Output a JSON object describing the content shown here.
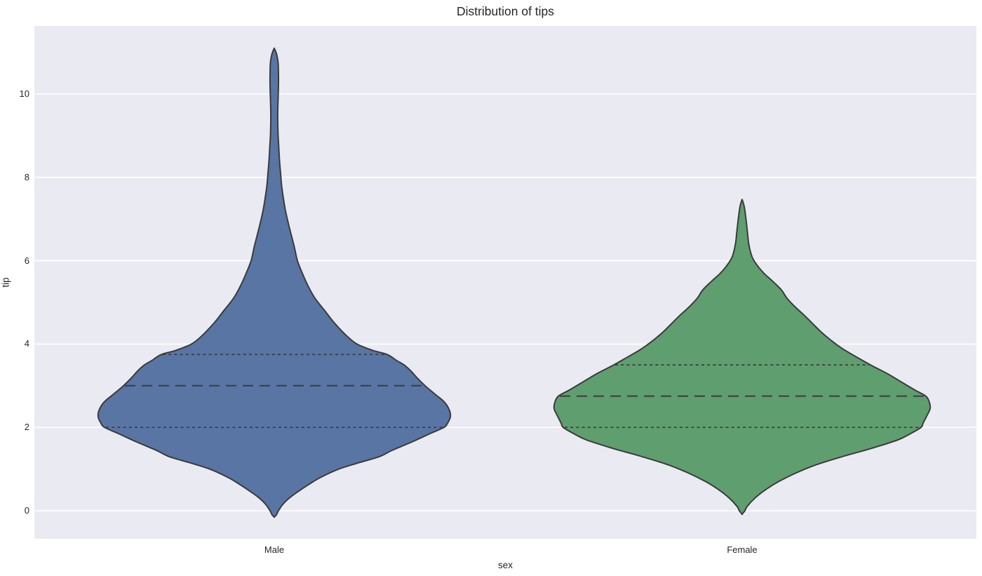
{
  "chart_data": {
    "type": "violin",
    "title": "Distribution of tips",
    "xlabel": "sex",
    "ylabel": "tip",
    "categories": [
      "Male",
      "Female"
    ],
    "y_ticks": [
      0,
      2,
      4,
      6,
      8,
      10
    ],
    "ylim": [
      -0.67,
      11.63
    ],
    "grid": "horizontal-white-on-gray",
    "legend": "none",
    "inner": "quartile-dashed-lines",
    "colors": {
      "axes_background": "#eaeaf2",
      "gridline": "#ffffff",
      "violin_edge": "#3b3b3b",
      "quartile_line": "#3c3c3c",
      "text": "#262626"
    },
    "series": [
      {
        "name": "Male",
        "fill": "#5875a4",
        "q1": 2.0,
        "median": 3.0,
        "q3": 3.75,
        "kde_extent": [
          -0.15,
          11.1
        ],
        "profile": [
          [
            11.1,
            0
          ],
          [
            10.95,
            3.5
          ],
          [
            10.75,
            5.5
          ],
          [
            10.5,
            6
          ],
          [
            10.2,
            6
          ],
          [
            9.9,
            5.5
          ],
          [
            9.6,
            5
          ],
          [
            9.3,
            5
          ],
          [
            9.0,
            5.5
          ],
          [
            8.7,
            6.5
          ],
          [
            8.4,
            7.5
          ],
          [
            8.1,
            9
          ],
          [
            7.8,
            10.5
          ],
          [
            7.5,
            13
          ],
          [
            7.2,
            16
          ],
          [
            6.9,
            20
          ],
          [
            6.6,
            24.5
          ],
          [
            6.3,
            29
          ],
          [
            6.0,
            33
          ],
          [
            5.7,
            40
          ],
          [
            5.4,
            48
          ],
          [
            5.1,
            58
          ],
          [
            4.8,
            72
          ],
          [
            4.5,
            86
          ],
          [
            4.2,
            103
          ],
          [
            4.0,
            118
          ],
          [
            3.85,
            140
          ],
          [
            3.75,
            161
          ],
          [
            3.6,
            175
          ],
          [
            3.5,
            185
          ],
          [
            3.35,
            195
          ],
          [
            3.2,
            203
          ],
          [
            3.0,
            215
          ],
          [
            2.8,
            229
          ],
          [
            2.6,
            243
          ],
          [
            2.4,
            250
          ],
          [
            2.25,
            251
          ],
          [
            2.1,
            247
          ],
          [
            2.0,
            242
          ],
          [
            1.85,
            222
          ],
          [
            1.65,
            196
          ],
          [
            1.45,
            168
          ],
          [
            1.3,
            150
          ],
          [
            1.15,
            120
          ],
          [
            1.0,
            92
          ],
          [
            0.8,
            66
          ],
          [
            0.64,
            50
          ],
          [
            0.45,
            33
          ],
          [
            0.3,
            21
          ],
          [
            0.15,
            12
          ],
          [
            0.0,
            6
          ],
          [
            -0.1,
            3
          ],
          [
            -0.15,
            0
          ]
        ]
      },
      {
        "name": "Female",
        "fill": "#5f9e6e",
        "q1": 2.0,
        "median": 2.75,
        "q3": 3.5,
        "kde_extent": [
          -0.08,
          7.47
        ],
        "profile": [
          [
            7.47,
            0
          ],
          [
            7.3,
            3
          ],
          [
            7.0,
            5.5
          ],
          [
            6.7,
            7.5
          ],
          [
            6.4,
            9.5
          ],
          [
            6.1,
            14
          ],
          [
            5.9,
            21
          ],
          [
            5.7,
            31
          ],
          [
            5.5,
            44
          ],
          [
            5.3,
            56
          ],
          [
            5.1,
            64
          ],
          [
            4.9,
            75
          ],
          [
            4.7,
            88
          ],
          [
            4.5,
            100
          ],
          [
            4.3,
            112
          ],
          [
            4.1,
            126
          ],
          [
            3.9,
            142
          ],
          [
            3.7,
            162
          ],
          [
            3.5,
            183
          ],
          [
            3.3,
            206
          ],
          [
            3.1,
            226
          ],
          [
            2.9,
            246
          ],
          [
            2.75,
            262
          ],
          [
            2.6,
            267
          ],
          [
            2.45,
            268
          ],
          [
            2.3,
            264
          ],
          [
            2.1,
            258
          ],
          [
            2.0,
            255
          ],
          [
            1.85,
            240
          ],
          [
            1.7,
            222
          ],
          [
            1.5,
            185
          ],
          [
            1.3,
            143
          ],
          [
            1.1,
            105
          ],
          [
            0.9,
            76
          ],
          [
            0.7,
            52
          ],
          [
            0.5,
            33
          ],
          [
            0.3,
            18
          ],
          [
            0.1,
            7
          ],
          [
            0.0,
            4
          ],
          [
            -0.08,
            0
          ]
        ]
      }
    ]
  }
}
